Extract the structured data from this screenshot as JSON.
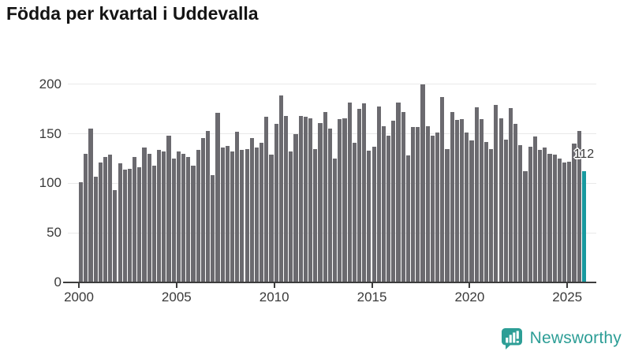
{
  "title": "Födda per kvartal i Uddevalla",
  "footer": {
    "brand": "Newsworthy"
  },
  "colors": {
    "bar": "#6b6a6f",
    "highlight": "#18999f",
    "grid": "#e9e9e9",
    "axis": "#3d3d3d",
    "label": "#3a3a3a",
    "brand": "#2d9e96"
  },
  "chart_data": {
    "type": "bar",
    "title": "Födda per kvartal i Uddevalla",
    "xlabel": "",
    "ylabel": "",
    "ylim": [
      0,
      200
    ],
    "y_ticks": [
      0,
      50,
      100,
      150,
      200
    ],
    "x_tick_labels": [
      "2000",
      "2005",
      "2010",
      "2015",
      "2020",
      "2025"
    ],
    "grid": true,
    "legend": "none",
    "highlight_index": 103,
    "highlight_value": 112,
    "highlight_value_label": "112",
    "categories": [
      "2000-Q1",
      "2000-Q2",
      "2000-Q3",
      "2000-Q4",
      "2001-Q1",
      "2001-Q2",
      "2001-Q3",
      "2001-Q4",
      "2002-Q1",
      "2002-Q2",
      "2002-Q3",
      "2002-Q4",
      "2003-Q1",
      "2003-Q2",
      "2003-Q3",
      "2003-Q4",
      "2004-Q1",
      "2004-Q2",
      "2004-Q3",
      "2004-Q4",
      "2005-Q1",
      "2005-Q2",
      "2005-Q3",
      "2005-Q4",
      "2006-Q1",
      "2006-Q2",
      "2006-Q3",
      "2006-Q4",
      "2007-Q1",
      "2007-Q2",
      "2007-Q3",
      "2007-Q4",
      "2008-Q1",
      "2008-Q2",
      "2008-Q3",
      "2008-Q4",
      "2009-Q1",
      "2009-Q2",
      "2009-Q3",
      "2009-Q4",
      "2010-Q1",
      "2010-Q2",
      "2010-Q3",
      "2010-Q4",
      "2011-Q1",
      "2011-Q2",
      "2011-Q3",
      "2011-Q4",
      "2012-Q1",
      "2012-Q2",
      "2012-Q3",
      "2012-Q4",
      "2013-Q1",
      "2013-Q2",
      "2013-Q3",
      "2013-Q4",
      "2014-Q1",
      "2014-Q2",
      "2014-Q3",
      "2014-Q4",
      "2015-Q1",
      "2015-Q2",
      "2015-Q3",
      "2015-Q4",
      "2016-Q1",
      "2016-Q2",
      "2016-Q3",
      "2016-Q4",
      "2017-Q1",
      "2017-Q2",
      "2017-Q3",
      "2017-Q4",
      "2018-Q1",
      "2018-Q2",
      "2018-Q3",
      "2018-Q4",
      "2019-Q1",
      "2019-Q2",
      "2019-Q3",
      "2019-Q4",
      "2020-Q1",
      "2020-Q2",
      "2020-Q3",
      "2020-Q4",
      "2021-Q1",
      "2021-Q2",
      "2021-Q3",
      "2021-Q4",
      "2022-Q1",
      "2022-Q2",
      "2022-Q3",
      "2022-Q4",
      "2023-Q1",
      "2023-Q2",
      "2023-Q3",
      "2023-Q4",
      "2024-Q1",
      "2024-Q2",
      "2024-Q3",
      "2024-Q4",
      "2025-Q1",
      "2025-Q2",
      "2025-Q3",
      "2025-Q4"
    ],
    "values": [
      101,
      130,
      155,
      107,
      121,
      127,
      129,
      93,
      120,
      114,
      115,
      127,
      116,
      136,
      130,
      118,
      134,
      132,
      148,
      125,
      132,
      130,
      127,
      118,
      134,
      146,
      153,
      108,
      171,
      136,
      138,
      132,
      152,
      134,
      135,
      146,
      136,
      141,
      167,
      129,
      160,
      189,
      168,
      132,
      150,
      168,
      167,
      166,
      135,
      161,
      172,
      155,
      125,
      165,
      166,
      182,
      141,
      175,
      181,
      133,
      137,
      178,
      158,
      148,
      163,
      182,
      172,
      128,
      157,
      157,
      200,
      158,
      148,
      151,
      187,
      135,
      172,
      164,
      165,
      151,
      143,
      177,
      165,
      142,
      135,
      179,
      166,
      144,
      176,
      160,
      139,
      112,
      137,
      147,
      134,
      136,
      130,
      129,
      125,
      121,
      122,
      140,
      153,
      112
    ]
  }
}
